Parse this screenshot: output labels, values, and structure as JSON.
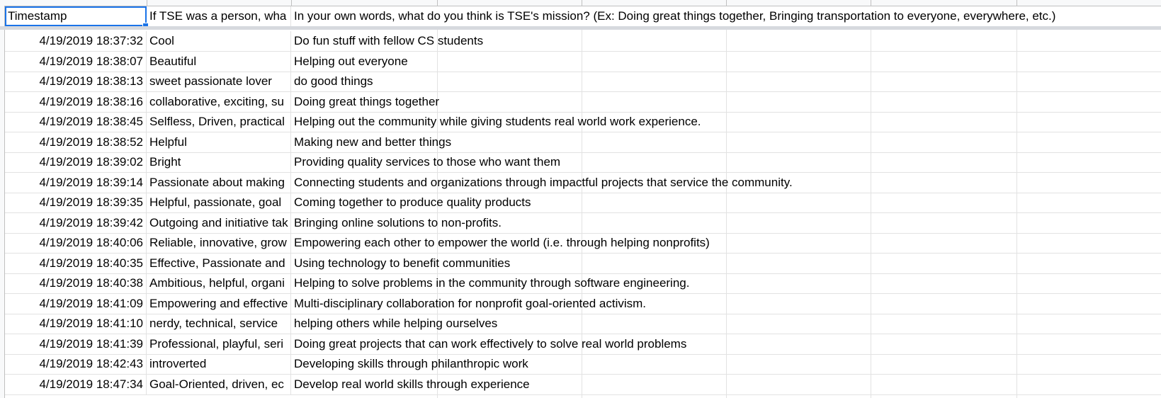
{
  "sheet": {
    "headers": {
      "a": "Timestamp",
      "b": "If TSE was a person, wha",
      "c": "In your own words, what do you think is TSE's mission? (Ex: Doing great things together, Bringing transportation to everyone, everywhere, etc.)"
    },
    "rows": [
      {
        "a": "4/19/2019 18:37:32",
        "b": "Cool",
        "c": "Do fun stuff with fellow CS students"
      },
      {
        "a": "4/19/2019 18:38:07",
        "b": "Beautiful",
        "c": "Helping out everyone"
      },
      {
        "a": "4/19/2019 18:38:13",
        "b": "sweet passionate lover",
        "c": "do good things"
      },
      {
        "a": "4/19/2019 18:38:16",
        "b": "collaborative, exciting, su",
        "c": "Doing great things together"
      },
      {
        "a": "4/19/2019 18:38:45",
        "b": "Selfless, Driven, practical",
        "c": "Helping out the community while giving students real world work experience."
      },
      {
        "a": "4/19/2019 18:38:52",
        "b": "Helpful",
        "c": "Making new and better things"
      },
      {
        "a": "4/19/2019 18:39:02",
        "b": "Bright",
        "c": "Providing quality services to those who want them"
      },
      {
        "a": "4/19/2019 18:39:14",
        "b": "Passionate about making",
        "c": "Connecting students and organizations through impactful projects that service the community."
      },
      {
        "a": "4/19/2019 18:39:35",
        "b": "Helpful, passionate, goal",
        "c": "Coming together to produce quality products"
      },
      {
        "a": "4/19/2019 18:39:42",
        "b": "Outgoing and initiative tak",
        "c": "Bringing online solutions to non-profits."
      },
      {
        "a": "4/19/2019 18:40:06",
        "b": "Reliable, innovative, grow",
        "c": "Empowering each other to empower the world (i.e. through helping nonprofits)"
      },
      {
        "a": "4/19/2019 18:40:35",
        "b": "Effective, Passionate and",
        "c": "Using technology to benefit communities"
      },
      {
        "a": "4/19/2019 18:40:38",
        "b": "Ambitious, helpful, organi",
        "c": "Helping to solve problems in the community through software engineering."
      },
      {
        "a": "4/19/2019 18:41:09",
        "b": "Empowering and effective",
        "c": "Multi-disciplinary collaboration for nonprofit goal-oriented activism."
      },
      {
        "a": "4/19/2019 18:41:10",
        "b": "nerdy, technical, service",
        "c": "helping others while helping ourselves"
      },
      {
        "a": "4/19/2019 18:41:39",
        "b": "Professional, playful, seri",
        "c": "Doing great projects that can work effectively to solve real world problems"
      },
      {
        "a": "4/19/2019 18:42:43",
        "b": "introverted",
        "c": "Developing skills through philanthropic work"
      },
      {
        "a": "4/19/2019 18:47:34",
        "b": "Goal-Oriented, driven, ec",
        "c": "Develop real world skills through experience"
      }
    ]
  },
  "colors": {
    "selection": "#1a73e8",
    "grid": "#e2e2e2",
    "header_bg": "#f8f9fa"
  }
}
